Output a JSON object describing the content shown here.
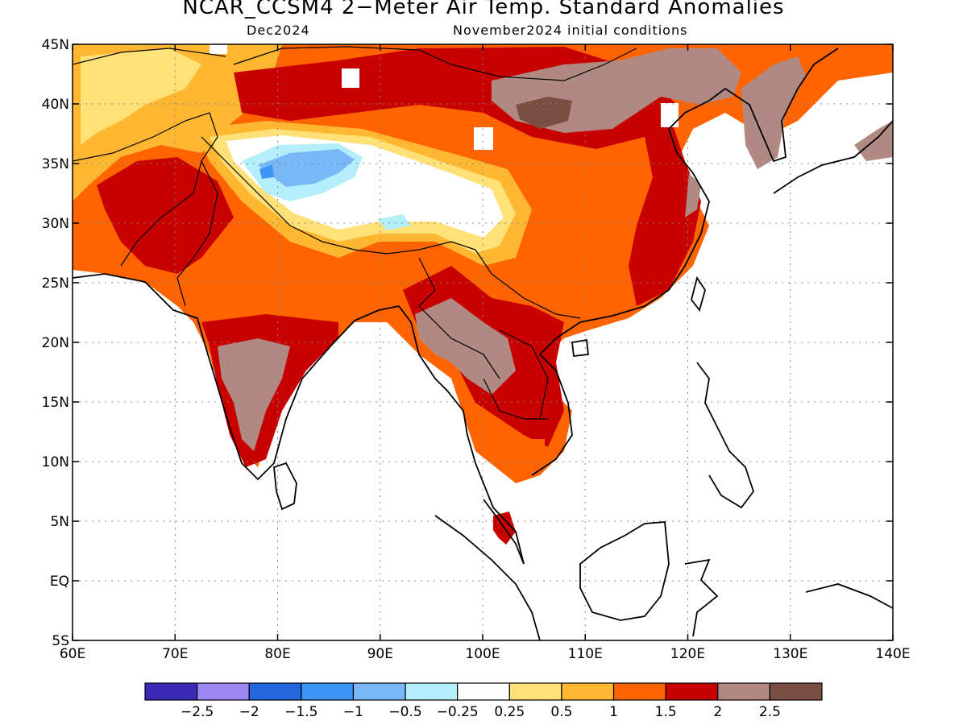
{
  "title": "NCAR_CCSM4 2−Meter Air Temp. Standard Anomalies",
  "valid_month": "Dec2024",
  "init_label": "November2024 initial conditions",
  "lon_ticks": [
    "60E",
    "70E",
    "80E",
    "90E",
    "100E",
    "110E",
    "120E",
    "130E",
    "140E"
  ],
  "lat_ticks": [
    "45N",
    "40N",
    "35N",
    "30N",
    "25N",
    "20N",
    "15N",
    "10N",
    "5N",
    "EQ",
    "5S"
  ],
  "colorbar": {
    "colors": [
      "#3b2ab8",
      "#9d87f5",
      "#2468e0",
      "#3d96f5",
      "#78b8f8",
      "#b4eefa",
      "#ffffff",
      "#ffe178",
      "#ffb732",
      "#ff6400",
      "#c80000",
      "#b08a82",
      "#7a4e42"
    ],
    "labels": [
      "−2.5",
      "−2",
      "−1.5",
      "−1",
      "−0.5",
      "−0.25",
      "0.25",
      "0.5",
      "1",
      "1.5",
      "2",
      "2.5"
    ]
  },
  "map_extent": {
    "lon_min": 60,
    "lon_max": 140,
    "lat_min": -5,
    "lat_max": 45
  }
}
